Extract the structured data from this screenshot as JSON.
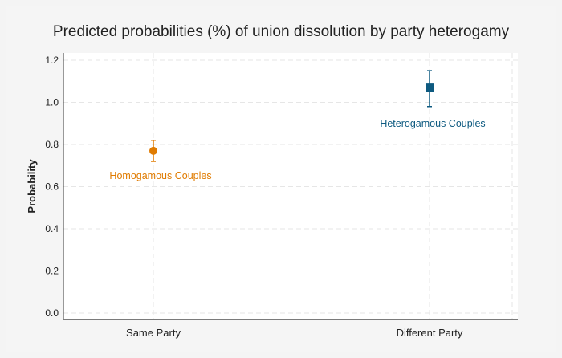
{
  "chart_data": {
    "type": "scatter",
    "title": "Predicted probabilities (%) of union dissolution by party heterogamy",
    "xlabel": "",
    "ylabel": "Probability",
    "categories": [
      "Same Party",
      "Different Party"
    ],
    "ylim": [
      0,
      1.2
    ],
    "yticks": [
      "0.0",
      "0.2",
      "0.4",
      "0.6",
      "0.8",
      "1.0",
      "1.2"
    ],
    "grid": true,
    "series": [
      {
        "name": "Homogamous Couples",
        "category": "Same Party",
        "value": 0.77,
        "ci_low": 0.72,
        "ci_high": 0.82,
        "marker": "circle",
        "color": "#e07b00"
      },
      {
        "name": "Heterogamous Couples",
        "category": "Different Party",
        "value": 1.07,
        "ci_low": 0.98,
        "ci_high": 1.15,
        "marker": "square",
        "color": "#0e5a80"
      }
    ]
  }
}
